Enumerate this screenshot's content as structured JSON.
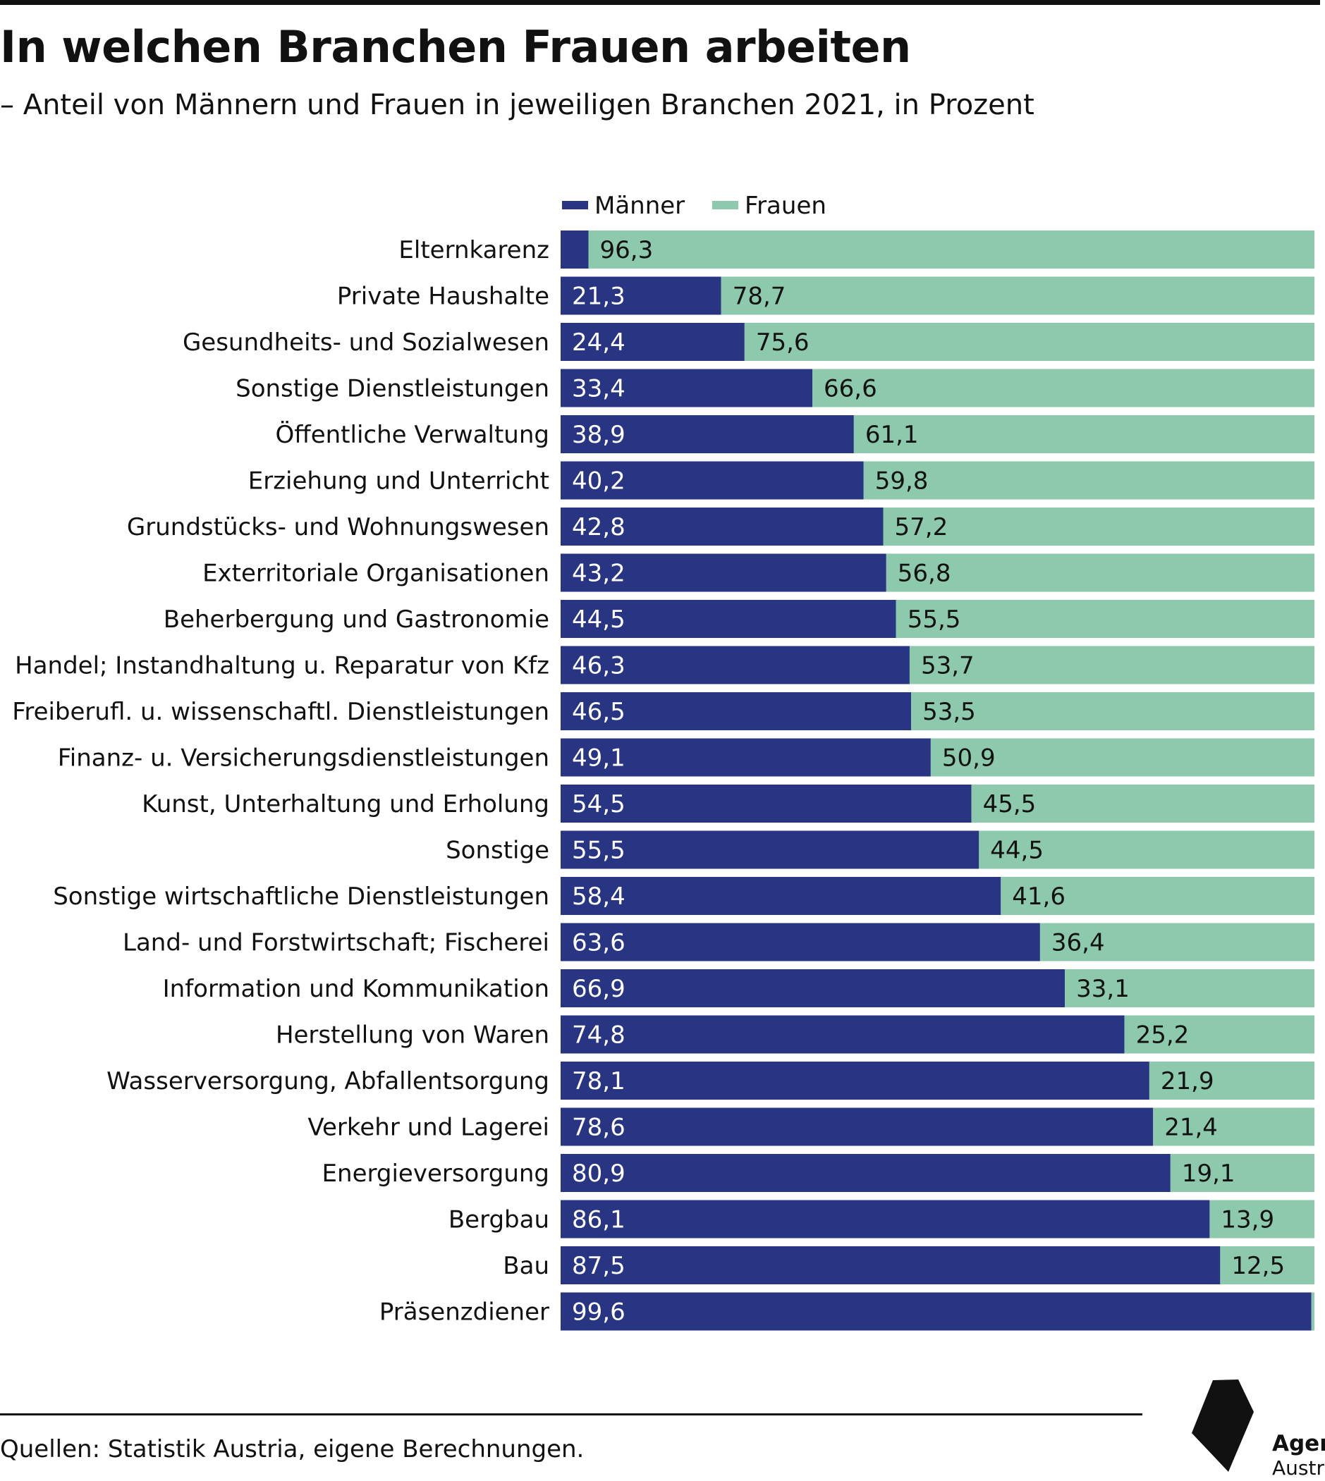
{
  "title": "In welchen Branchen Frauen arbeiten",
  "subtitle": "– Anteil von Männern und Frauen in jeweiligen Branchen 2021, in Prozent",
  "source": "Quellen: Statistik Austria, eigene Berechnungen.",
  "logo": {
    "line1": "Agenda",
    "line2": "Austria"
  },
  "colors": {
    "maenner": "#283583",
    "frauen": "#8dc9ac",
    "text": "#111111",
    "label_light": "#ffffff"
  },
  "chart_data": {
    "type": "bar",
    "orientation": "horizontal",
    "stacked": true,
    "title": "In welchen Branchen Frauen arbeiten",
    "subtitle": "– Anteil von Männern und Frauen in jeweiligen Branchen 2021, in Prozent",
    "xlim": [
      0,
      100
    ],
    "grid": false,
    "legend_position": "top",
    "categories": [
      "Elternkarenz",
      "Private Haushalte",
      "Gesundheits- und Sozialwesen",
      "Sonstige Dienstleistungen",
      "Öffentliche Verwaltung",
      "Erziehung und Unterricht",
      "Grundstücks- und Wohnungswesen",
      "Exterritoriale Organisationen",
      "Beherbergung und Gastronomie",
      "Handel; Instandhaltung u. Reparatur von Kfz",
      "Freiberufl. u. wissenschaftl. Dienstleistungen",
      "Finanz- u. Versicherungsdienstleistungen",
      "Kunst, Unterhaltung und Erholung",
      "Sonstige",
      "Sonstige wirtschaftliche Dienstleistungen",
      "Land- und Forstwirtschaft; Fischerei",
      "Information und Kommunikation",
      "Herstellung von Waren",
      "Wasserversorgung, Abfallentsorgung",
      "Verkehr und Lagerei",
      "Energieversorgung",
      "Bergbau",
      "Bau",
      "Präsenzdiener"
    ],
    "series": [
      {
        "name": "Männer",
        "color": "#283583",
        "values": [
          3.7,
          21.3,
          24.4,
          33.4,
          38.9,
          40.2,
          42.8,
          43.2,
          44.5,
          46.3,
          46.5,
          49.1,
          54.5,
          55.5,
          58.4,
          63.6,
          66.9,
          74.8,
          78.1,
          78.6,
          80.9,
          86.1,
          87.5,
          99.6
        ],
        "labels": [
          "",
          "21,3",
          "24,4",
          "33,4",
          "38,9",
          "40,2",
          "42,8",
          "43,2",
          "44,5",
          "46,3",
          "46,5",
          "49,1",
          "54,5",
          "55,5",
          "58,4",
          "63,6",
          "66,9",
          "74,8",
          "78,1",
          "78,6",
          "80,9",
          "86,1",
          "87,5",
          "99,6"
        ]
      },
      {
        "name": "Frauen",
        "color": "#8dc9ac",
        "values": [
          96.3,
          78.7,
          75.6,
          66.6,
          61.1,
          59.8,
          57.2,
          56.8,
          55.5,
          53.7,
          53.5,
          50.9,
          45.5,
          44.5,
          41.6,
          36.4,
          33.1,
          25.2,
          21.9,
          21.4,
          19.1,
          13.9,
          12.5,
          0.4
        ],
        "labels": [
          "96,3",
          "78,7",
          "75,6",
          "66,6",
          "61,1",
          "59,8",
          "57,2",
          "56,8",
          "55,5",
          "53,7",
          "53,5",
          "50,9",
          "45,5",
          "44,5",
          "41,6",
          "36,4",
          "33,1",
          "25,2",
          "21,9",
          "21,4",
          "19,1",
          "13,9",
          "12,5",
          ""
        ]
      }
    ]
  }
}
